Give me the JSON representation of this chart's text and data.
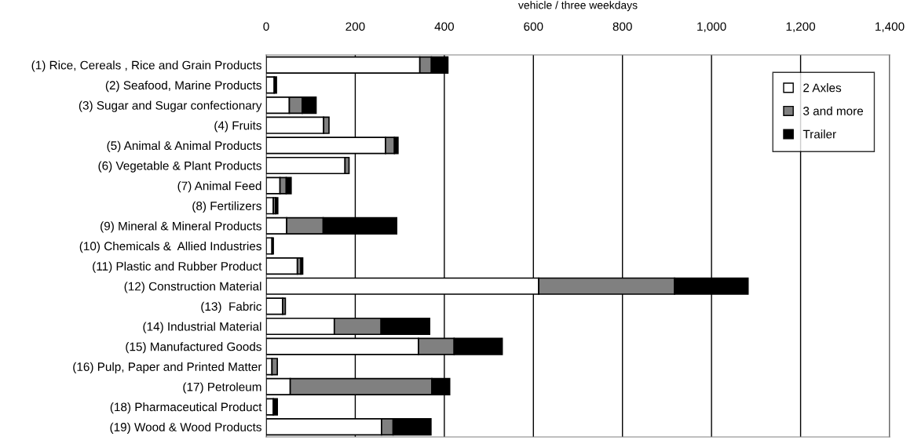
{
  "chart_data": {
    "type": "bar",
    "orientation": "horizontal",
    "stacked": true,
    "xlabel": "vehicle / three weekdays",
    "categories": [
      "(1) Rice, Cereals , Rice and Grain Products",
      "(2) Seafood, Marine Products",
      "(3) Sugar and Sugar confectionary",
      "(4) Fruits",
      "(5) Animal & Animal Products",
      "(6) Vegetable & Plant Products",
      "(7) Animal Feed",
      "(8) Fertilizers",
      "(9) Mineral & Mineral Products",
      "(10) Chemicals &  Allied Industries",
      "(11) Plastic and Rubber Product",
      "(12) Construction Material",
      "(13)  Fabric",
      "(14) Industrial Material",
      "(15) Manufactured Goods",
      "(16) Pulp, Paper and Printed Matter",
      "(17) Petroleum",
      "(18) Pharmaceutical Product",
      "(19) Wood & Wood Products"
    ],
    "series": [
      {
        "name": "2 Axles",
        "color": "#ffffff",
        "values": [
          345,
          18,
          52,
          129,
          268,
          177,
          31,
          16,
          46,
          13,
          70,
          612,
          37,
          153,
          342,
          13,
          54,
          16,
          259
        ]
      },
      {
        "name": "3 and more",
        "color": "#808080",
        "values": [
          26,
          null,
          29,
          12,
          20,
          9,
          14,
          5,
          82,
          null,
          8,
          305,
          6,
          105,
          80,
          12,
          318,
          null,
          26
        ]
      },
      {
        "name": "Trailer",
        "color": "#000000",
        "values": [
          37,
          5,
          31,
          null,
          8,
          null,
          11,
          5,
          165,
          3,
          4,
          165,
          null,
          109,
          108,
          null,
          40,
          9,
          85
        ]
      }
    ],
    "xlim": [
      0,
      1400
    ],
    "xticks": [
      0,
      200,
      400,
      600,
      800,
      {
        "value": 1000,
        "label": "1,000"
      },
      {
        "value": 1200,
        "label": "1,200"
      },
      {
        "value": 1400,
        "label": "1,400"
      }
    ],
    "grid": "x",
    "legend": "top right"
  }
}
